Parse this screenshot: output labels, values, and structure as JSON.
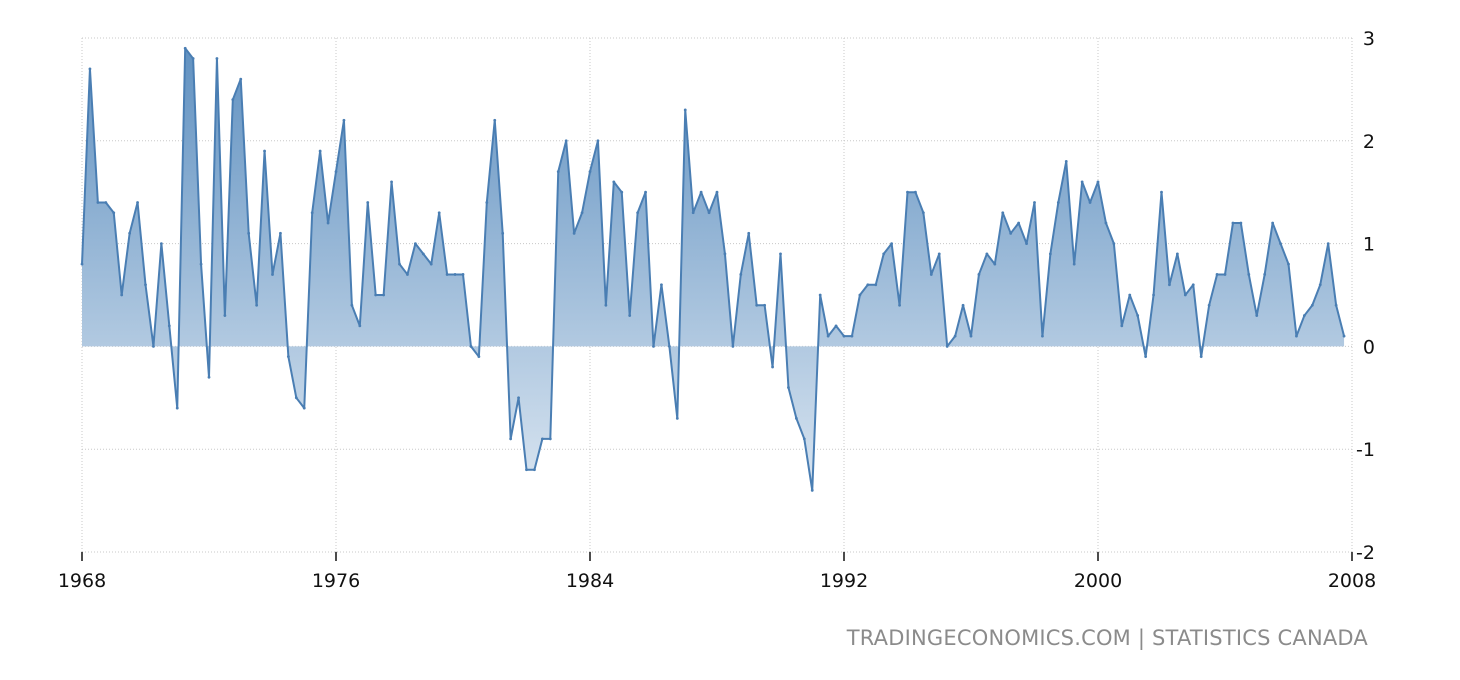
{
  "source": "TRADINGECONOMICS.COM | STATISTICS CANADA",
  "chart_data": {
    "type": "area",
    "title": "",
    "xlabel": "",
    "ylabel": "",
    "x_ticks": [
      "1968",
      "1976",
      "1984",
      "1992",
      "2000",
      "2008"
    ],
    "y_ticks": [
      "3",
      "2",
      "1",
      "0",
      "-1",
      "-2"
    ],
    "xlim": [
      1968,
      2008
    ],
    "ylim": [
      -2,
      3
    ],
    "x_start": 1968.0,
    "x_step": 0.25,
    "colors": {
      "line": "#4a7eb3",
      "fill_top": "#5f90c0",
      "fill_bottom": "#e9f0f7"
    },
    "grid": true,
    "series": [
      {
        "values": [
          0.8,
          2.7,
          1.4,
          1.4,
          1.3,
          0.5,
          1.1,
          1.4,
          0.6,
          0.0,
          1.0,
          0.2,
          -0.6,
          2.9,
          2.8,
          0.8,
          -0.3,
          2.8,
          0.3,
          2.4,
          2.6,
          1.1,
          0.4,
          1.9,
          0.7,
          1.1,
          -0.1,
          -0.5,
          -0.6,
          1.3,
          1.9,
          1.2,
          1.7,
          2.2,
          0.4,
          0.2,
          1.4,
          0.5,
          0.5,
          1.6,
          0.8,
          0.7,
          1.0,
          0.9,
          0.8,
          1.3,
          0.7,
          0.7,
          0.7,
          0.0,
          -0.1,
          1.4,
          2.2,
          1.1,
          -0.9,
          -0.5,
          -1.2,
          -1.2,
          -0.9,
          -0.9,
          1.7,
          2.0,
          1.1,
          1.3,
          1.7,
          2.0,
          0.4,
          1.6,
          1.5,
          0.3,
          1.3,
          1.5,
          0.0,
          0.6,
          0.0,
          -0.7,
          2.3,
          1.3,
          1.5,
          1.3,
          1.5,
          0.9,
          0.0,
          0.7,
          1.1,
          0.4,
          0.4,
          -0.2,
          0.9,
          -0.4,
          -0.7,
          -0.9,
          -1.4,
          0.5,
          0.1,
          0.2,
          0.1,
          0.1,
          0.5,
          0.6,
          0.6,
          0.9,
          1.0,
          0.4,
          1.5,
          1.5,
          1.3,
          0.7,
          0.9,
          0.0,
          0.1,
          0.4,
          0.1,
          0.7,
          0.9,
          0.8,
          1.3,
          1.1,
          1.2,
          1.0,
          1.4,
          0.1,
          0.9,
          1.4,
          1.8,
          0.8,
          1.6,
          1.4,
          1.6,
          1.2,
          1.0,
          0.2,
          0.5,
          0.3,
          -0.1,
          0.5,
          1.5,
          0.6,
          0.9,
          0.5,
          0.6,
          -0.1,
          0.4,
          0.7,
          0.7,
          1.2,
          1.2,
          0.7,
          0.3,
          0.7,
          1.2,
          1.0,
          0.8,
          0.1,
          0.3,
          0.4,
          0.6,
          1.0,
          0.4,
          0.1
        ]
      }
    ]
  }
}
